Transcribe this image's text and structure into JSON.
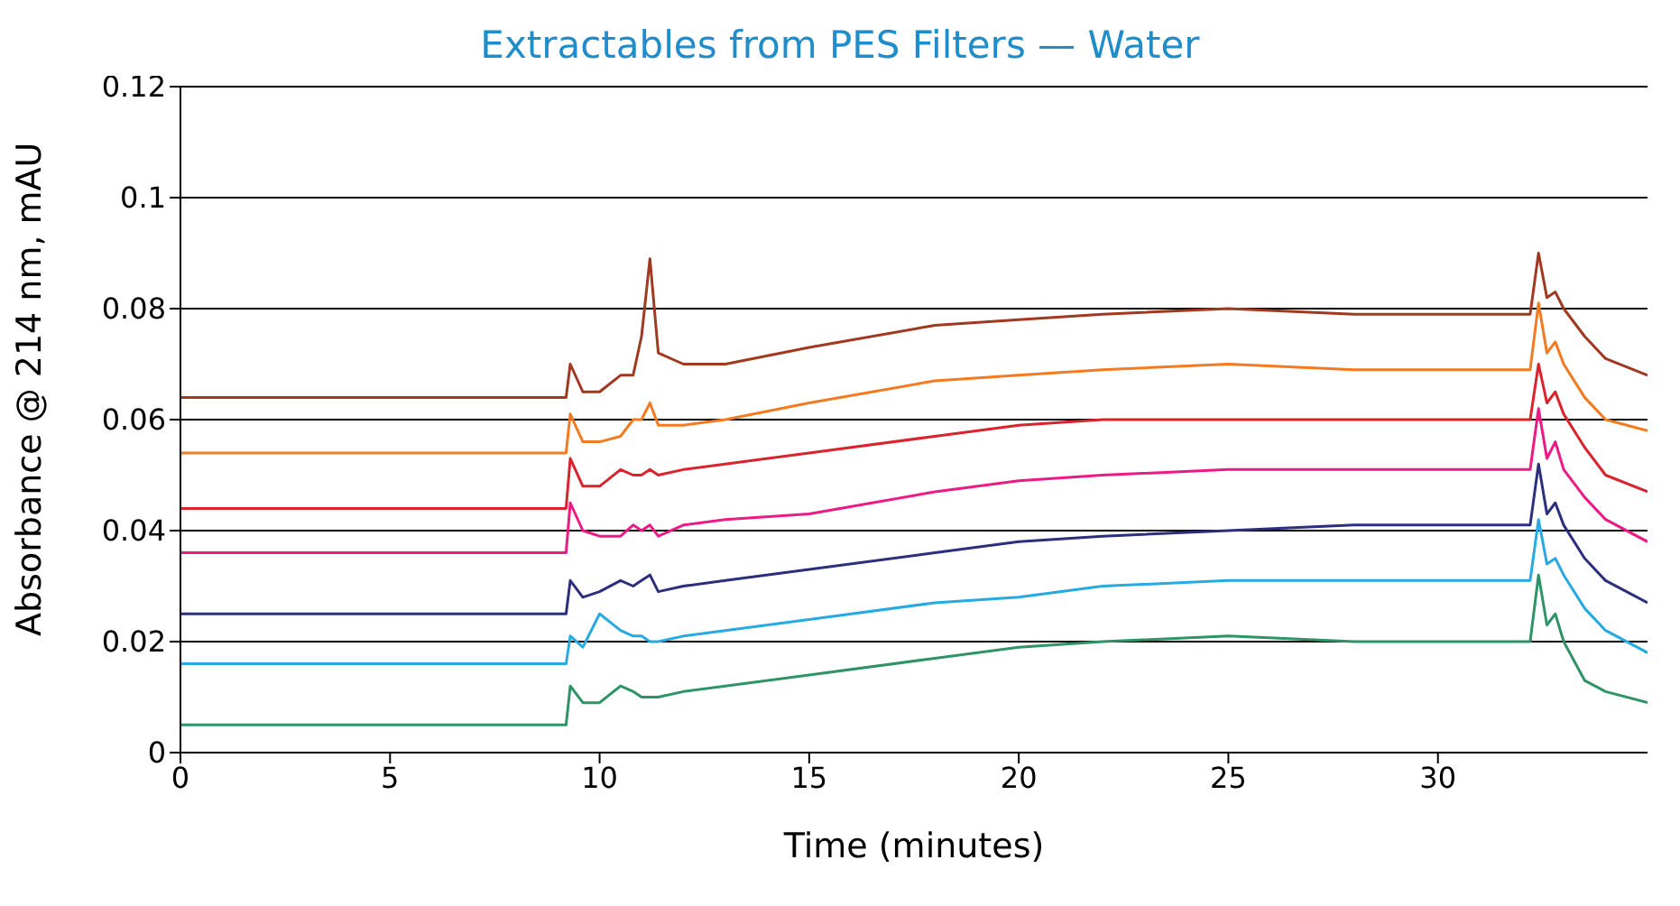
{
  "chart_data": {
    "type": "line",
    "title": "Extractables from PES Filters — Water",
    "xlabel": "Time (minutes)",
    "ylabel": "Absorbance @ 214 nm, mAU",
    "x": [
      0,
      2,
      4,
      6,
      8,
      9.2,
      9.3,
      9.6,
      10,
      10.5,
      10.8,
      11,
      11.2,
      11.4,
      12,
      13,
      15,
      18,
      20,
      22,
      25,
      28,
      30,
      32.2,
      32.4,
      32.6,
      32.8,
      33,
      33.5,
      34,
      35
    ],
    "series": [
      {
        "color": "#a0391f",
        "values": [
          0.064,
          0.064,
          0.064,
          0.064,
          0.064,
          0.064,
          0.07,
          0.065,
          0.065,
          0.068,
          0.068,
          0.075,
          0.089,
          0.072,
          0.07,
          0.07,
          0.073,
          0.077,
          0.078,
          0.079,
          0.08,
          0.079,
          0.079,
          0.079,
          0.09,
          0.082,
          0.083,
          0.08,
          0.075,
          0.071,
          0.068
        ]
      },
      {
        "color": "#f47a20",
        "values": [
          0.054,
          0.054,
          0.054,
          0.054,
          0.054,
          0.054,
          0.061,
          0.056,
          0.056,
          0.057,
          0.06,
          0.06,
          0.063,
          0.059,
          0.059,
          0.06,
          0.063,
          0.067,
          0.068,
          0.069,
          0.07,
          0.069,
          0.069,
          0.069,
          0.081,
          0.072,
          0.074,
          0.07,
          0.064,
          0.06,
          0.058
        ]
      },
      {
        "color": "#d9232d",
        "values": [
          0.044,
          0.044,
          0.044,
          0.044,
          0.044,
          0.044,
          0.053,
          0.048,
          0.048,
          0.051,
          0.05,
          0.05,
          0.051,
          0.05,
          0.051,
          0.052,
          0.054,
          0.057,
          0.059,
          0.06,
          0.06,
          0.06,
          0.06,
          0.06,
          0.07,
          0.063,
          0.065,
          0.061,
          0.055,
          0.05,
          0.047
        ]
      },
      {
        "color": "#ec1a85",
        "values": [
          0.036,
          0.036,
          0.036,
          0.036,
          0.036,
          0.036,
          0.045,
          0.04,
          0.039,
          0.039,
          0.041,
          0.04,
          0.041,
          0.039,
          0.041,
          0.042,
          0.043,
          0.047,
          0.049,
          0.05,
          0.051,
          0.051,
          0.051,
          0.051,
          0.062,
          0.053,
          0.056,
          0.051,
          0.046,
          0.042,
          0.038
        ]
      },
      {
        "color": "#2b2f7d",
        "values": [
          0.025,
          0.025,
          0.025,
          0.025,
          0.025,
          0.025,
          0.031,
          0.028,
          0.029,
          0.031,
          0.03,
          0.031,
          0.032,
          0.029,
          0.03,
          0.031,
          0.033,
          0.036,
          0.038,
          0.039,
          0.04,
          0.041,
          0.041,
          0.041,
          0.052,
          0.043,
          0.045,
          0.041,
          0.035,
          0.031,
          0.027
        ]
      },
      {
        "color": "#27a9e1",
        "values": [
          0.016,
          0.016,
          0.016,
          0.016,
          0.016,
          0.016,
          0.021,
          0.019,
          0.025,
          0.022,
          0.021,
          0.021,
          0.02,
          0.02,
          0.021,
          0.022,
          0.024,
          0.027,
          0.028,
          0.03,
          0.031,
          0.031,
          0.031,
          0.031,
          0.042,
          0.034,
          0.035,
          0.032,
          0.026,
          0.022,
          0.018
        ]
      },
      {
        "color": "#2e9466",
        "values": [
          0.005,
          0.005,
          0.005,
          0.005,
          0.005,
          0.005,
          0.012,
          0.009,
          0.009,
          0.012,
          0.011,
          0.01,
          0.01,
          0.01,
          0.011,
          0.012,
          0.014,
          0.017,
          0.019,
          0.02,
          0.021,
          0.02,
          0.02,
          0.02,
          0.032,
          0.023,
          0.025,
          0.02,
          0.013,
          0.011,
          0.009
        ]
      }
    ],
    "xlim": [
      0,
      35
    ],
    "xticks": [
      0,
      5,
      10,
      15,
      20,
      25,
      30
    ],
    "ylim": [
      0,
      0.12
    ],
    "yticks": [
      0,
      0.02,
      0.04,
      0.06,
      0.08,
      0.1,
      0.12
    ],
    "grid": "y",
    "legend": false,
    "marker": "none",
    "line_style": "solid"
  }
}
